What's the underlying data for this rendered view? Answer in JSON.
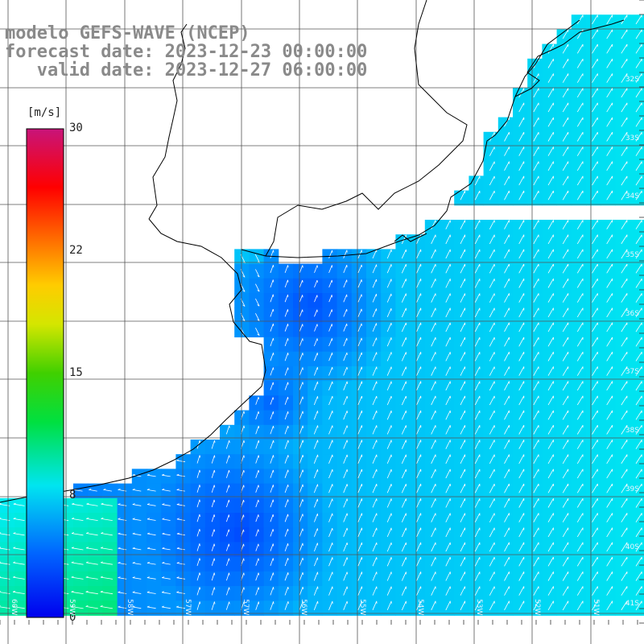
{
  "title": {
    "line1": "modelo GEFS-WAVE (NCEP)",
    "line2": "forecast date: 2023-12-23 00:00:00",
    "line3": "   valid date: 2023-12-27 06:00:00"
  },
  "colorbar": {
    "unit": "[m/s]",
    "ticks": [
      "30",
      "22",
      "15",
      "8",
      "0"
    ],
    "min": 0,
    "max": 30
  },
  "lat_labels": [
    "32S",
    "33S",
    "34S",
    "35S",
    "36S",
    "37S",
    "38S",
    "39S",
    "40S",
    "41S"
  ],
  "lon_labels": [
    "60W",
    "59W",
    "58W",
    "57W",
    "56W",
    "55W",
    "54W",
    "53W",
    "52W",
    "51W"
  ],
  "colors": {
    "land": "#ffffff",
    "coast": "#000000",
    "grid": "#555555",
    "arrow": "#ffffff"
  }
}
